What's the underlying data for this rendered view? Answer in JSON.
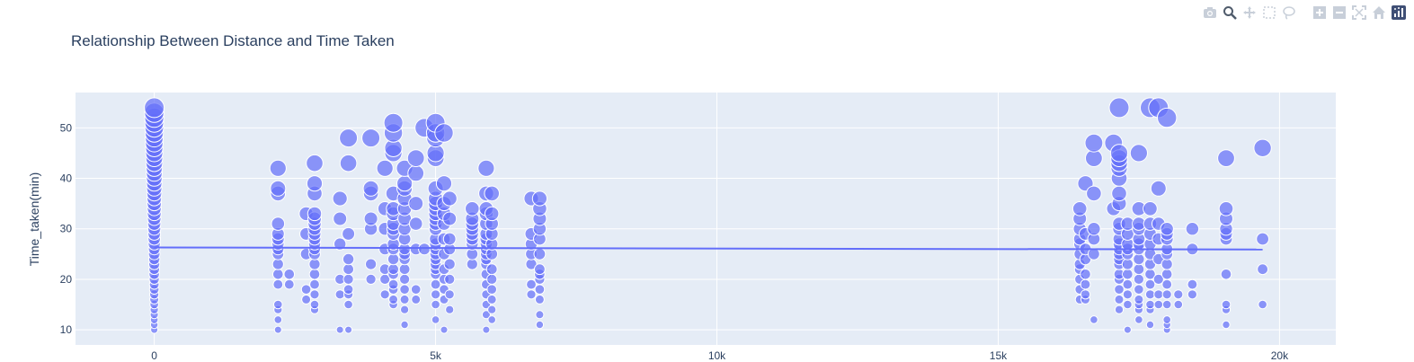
{
  "modebar": {
    "buttons": [
      "camera-icon",
      "zoom-icon",
      "pan-icon",
      "box-select-icon",
      "lasso-icon",
      "zoom-in-icon",
      "zoom-out-icon",
      "autoscale-icon",
      "home-icon",
      "plotly-logo-icon"
    ]
  },
  "chart_data": {
    "type": "scatter",
    "title": "Relationship Between Distance and Time Taken",
    "xlabel": "",
    "ylabel": "Time_taken(min)",
    "xlim": [
      -1400,
      21000
    ],
    "ylim": [
      7,
      57
    ],
    "xticks": [
      0,
      5000,
      10000,
      15000,
      20000
    ],
    "xtick_labels": [
      "0",
      "5k",
      "10k",
      "15k",
      "20k"
    ],
    "yticks": [
      10,
      20,
      30,
      40,
      50
    ],
    "ytick_labels": [
      "10",
      "20",
      "30",
      "40",
      "50"
    ],
    "grid": true,
    "legend": "none",
    "colors": {
      "marker": "#636efa",
      "trend": "#636efa",
      "plot_bg": "#e5ecf6",
      "grid": "#ffffff"
    },
    "bubble_size_encodes": "y",
    "trendline": {
      "x": [
        0,
        19700
      ],
      "y": [
        26.3,
        25.9
      ]
    },
    "points": [
      [
        0,
        10
      ],
      [
        0,
        11
      ],
      [
        0,
        12
      ],
      [
        0,
        13
      ],
      [
        0,
        14
      ],
      [
        0,
        15
      ],
      [
        0,
        16
      ],
      [
        0,
        17
      ],
      [
        0,
        18
      ],
      [
        0,
        19
      ],
      [
        0,
        20
      ],
      [
        0,
        21
      ],
      [
        0,
        22
      ],
      [
        0,
        23
      ],
      [
        0,
        24
      ],
      [
        0,
        25
      ],
      [
        0,
        26
      ],
      [
        0,
        27
      ],
      [
        0,
        28
      ],
      [
        0,
        29
      ],
      [
        0,
        30
      ],
      [
        0,
        31
      ],
      [
        0,
        32
      ],
      [
        0,
        33
      ],
      [
        0,
        34
      ],
      [
        0,
        35
      ],
      [
        0,
        36
      ],
      [
        0,
        37
      ],
      [
        0,
        38
      ],
      [
        0,
        39
      ],
      [
        0,
        40
      ],
      [
        0,
        41
      ],
      [
        0,
        42
      ],
      [
        0,
        43
      ],
      [
        0,
        44
      ],
      [
        0,
        45
      ],
      [
        0,
        46
      ],
      [
        0,
        47
      ],
      [
        0,
        48
      ],
      [
        0,
        49
      ],
      [
        0,
        50
      ],
      [
        0,
        51
      ],
      [
        0,
        52
      ],
      [
        0,
        53
      ],
      [
        0,
        54
      ],
      [
        2200,
        10
      ],
      [
        2200,
        12
      ],
      [
        2200,
        14
      ],
      [
        2200,
        15
      ],
      [
        2200,
        19
      ],
      [
        2200,
        21
      ],
      [
        2200,
        23
      ],
      [
        2200,
        25
      ],
      [
        2200,
        26
      ],
      [
        2200,
        27
      ],
      [
        2200,
        28
      ],
      [
        2200,
        29
      ],
      [
        2200,
        31
      ],
      [
        2200,
        37
      ],
      [
        2200,
        38
      ],
      [
        2200,
        42
      ],
      [
        2400,
        19
      ],
      [
        2400,
        21
      ],
      [
        2700,
        16
      ],
      [
        2700,
        18
      ],
      [
        2700,
        25
      ],
      [
        2700,
        29
      ],
      [
        2700,
        33
      ],
      [
        2850,
        14
      ],
      [
        2850,
        15
      ],
      [
        2850,
        17
      ],
      [
        2850,
        19
      ],
      [
        2850,
        21
      ],
      [
        2850,
        23
      ],
      [
        2850,
        25
      ],
      [
        2850,
        26
      ],
      [
        2850,
        27
      ],
      [
        2850,
        28
      ],
      [
        2850,
        29
      ],
      [
        2850,
        30
      ],
      [
        2850,
        31
      ],
      [
        2850,
        32
      ],
      [
        2850,
        33
      ],
      [
        2850,
        37
      ],
      [
        2850,
        39
      ],
      [
        2850,
        43
      ],
      [
        3300,
        10
      ],
      [
        3300,
        17
      ],
      [
        3300,
        20
      ],
      [
        3300,
        27
      ],
      [
        3300,
        32
      ],
      [
        3300,
        36
      ],
      [
        3450,
        10
      ],
      [
        3450,
        15
      ],
      [
        3450,
        17
      ],
      [
        3450,
        18
      ],
      [
        3450,
        20
      ],
      [
        3450,
        22
      ],
      [
        3450,
        24
      ],
      [
        3450,
        29
      ],
      [
        3450,
        43
      ],
      [
        3450,
        48
      ],
      [
        3850,
        20
      ],
      [
        3850,
        23
      ],
      [
        3850,
        30
      ],
      [
        3850,
        32
      ],
      [
        3850,
        37
      ],
      [
        3850,
        38
      ],
      [
        3850,
        48
      ],
      [
        4100,
        17
      ],
      [
        4100,
        20
      ],
      [
        4100,
        22
      ],
      [
        4100,
        26
      ],
      [
        4100,
        30
      ],
      [
        4100,
        34
      ],
      [
        4100,
        42
      ],
      [
        4250,
        15
      ],
      [
        4250,
        16
      ],
      [
        4250,
        18
      ],
      [
        4250,
        19
      ],
      [
        4250,
        21
      ],
      [
        4250,
        22
      ],
      [
        4250,
        24
      ],
      [
        4250,
        26
      ],
      [
        4250,
        27
      ],
      [
        4250,
        29
      ],
      [
        4250,
        30
      ],
      [
        4250,
        31
      ],
      [
        4250,
        33
      ],
      [
        4250,
        34
      ],
      [
        4250,
        37
      ],
      [
        4250,
        45
      ],
      [
        4250,
        46
      ],
      [
        4250,
        49
      ],
      [
        4250,
        51
      ],
      [
        4450,
        11
      ],
      [
        4450,
        14
      ],
      [
        4450,
        16
      ],
      [
        4450,
        18
      ],
      [
        4450,
        20
      ],
      [
        4450,
        22
      ],
      [
        4450,
        24
      ],
      [
        4450,
        25
      ],
      [
        4450,
        26
      ],
      [
        4450,
        28
      ],
      [
        4450,
        30
      ],
      [
        4450,
        32
      ],
      [
        4450,
        34
      ],
      [
        4450,
        36
      ],
      [
        4450,
        38
      ],
      [
        4450,
        39
      ],
      [
        4450,
        42
      ],
      [
        4650,
        16
      ],
      [
        4650,
        18
      ],
      [
        4650,
        26
      ],
      [
        4650,
        31
      ],
      [
        4650,
        35
      ],
      [
        4650,
        41
      ],
      [
        4650,
        44
      ],
      [
        4800,
        26
      ],
      [
        4800,
        50
      ],
      [
        5000,
        12
      ],
      [
        5000,
        15
      ],
      [
        5000,
        17
      ],
      [
        5000,
        19
      ],
      [
        5000,
        21
      ],
      [
        5000,
        22
      ],
      [
        5000,
        23
      ],
      [
        5000,
        24
      ],
      [
        5000,
        25
      ],
      [
        5000,
        26
      ],
      [
        5000,
        27
      ],
      [
        5000,
        28
      ],
      [
        5000,
        30
      ],
      [
        5000,
        31
      ],
      [
        5000,
        32
      ],
      [
        5000,
        33
      ],
      [
        5000,
        34
      ],
      [
        5000,
        35
      ],
      [
        5000,
        36
      ],
      [
        5000,
        38
      ],
      [
        5000,
        44
      ],
      [
        5000,
        45
      ],
      [
        5000,
        48
      ],
      [
        5000,
        49
      ],
      [
        5000,
        51
      ],
      [
        5150,
        10
      ],
      [
        5150,
        16
      ],
      [
        5150,
        18
      ],
      [
        5150,
        20
      ],
      [
        5150,
        22
      ],
      [
        5150,
        25
      ],
      [
        5150,
        28
      ],
      [
        5150,
        31
      ],
      [
        5150,
        33
      ],
      [
        5150,
        35
      ],
      [
        5150,
        39
      ],
      [
        5150,
        49
      ],
      [
        5250,
        14
      ],
      [
        5250,
        17
      ],
      [
        5250,
        20
      ],
      [
        5250,
        23
      ],
      [
        5250,
        26
      ],
      [
        5250,
        28
      ],
      [
        5250,
        32
      ],
      [
        5250,
        36
      ],
      [
        5650,
        23
      ],
      [
        5650,
        25
      ],
      [
        5650,
        27
      ],
      [
        5650,
        28
      ],
      [
        5650,
        29
      ],
      [
        5650,
        30
      ],
      [
        5650,
        31
      ],
      [
        5650,
        32
      ],
      [
        5650,
        34
      ],
      [
        5900,
        10
      ],
      [
        5900,
        13
      ],
      [
        5900,
        15
      ],
      [
        5900,
        17
      ],
      [
        5900,
        19
      ],
      [
        5900,
        21
      ],
      [
        5900,
        23
      ],
      [
        5900,
        24
      ],
      [
        5900,
        25
      ],
      [
        5900,
        26
      ],
      [
        5900,
        27
      ],
      [
        5900,
        28
      ],
      [
        5900,
        29
      ],
      [
        5900,
        31
      ],
      [
        5900,
        33
      ],
      [
        5900,
        34
      ],
      [
        5900,
        37
      ],
      [
        5900,
        42
      ],
      [
        6000,
        12
      ],
      [
        6000,
        14
      ],
      [
        6000,
        16
      ],
      [
        6000,
        18
      ],
      [
        6000,
        20
      ],
      [
        6000,
        22
      ],
      [
        6000,
        25
      ],
      [
        6000,
        27
      ],
      [
        6000,
        29
      ],
      [
        6000,
        31
      ],
      [
        6000,
        33
      ],
      [
        6000,
        37
      ],
      [
        6700,
        17
      ],
      [
        6700,
        19
      ],
      [
        6700,
        23
      ],
      [
        6700,
        25
      ],
      [
        6700,
        27
      ],
      [
        6700,
        29
      ],
      [
        6700,
        36
      ],
      [
        6850,
        11
      ],
      [
        6850,
        13
      ],
      [
        6850,
        16
      ],
      [
        6850,
        18
      ],
      [
        6850,
        20
      ],
      [
        6850,
        21
      ],
      [
        6850,
        22
      ],
      [
        6850,
        25
      ],
      [
        6850,
        28
      ],
      [
        6850,
        30
      ],
      [
        6850,
        32
      ],
      [
        6850,
        34
      ],
      [
        6850,
        36
      ],
      [
        16450,
        16
      ],
      [
        16450,
        18
      ],
      [
        16450,
        20
      ],
      [
        16450,
        22
      ],
      [
        16450,
        23
      ],
      [
        16450,
        25
      ],
      [
        16450,
        27
      ],
      [
        16450,
        28
      ],
      [
        16450,
        30
      ],
      [
        16450,
        32
      ],
      [
        16450,
        34
      ],
      [
        16550,
        16
      ],
      [
        16550,
        17
      ],
      [
        16550,
        19
      ],
      [
        16550,
        21
      ],
      [
        16550,
        24
      ],
      [
        16550,
        26
      ],
      [
        16550,
        29
      ],
      [
        16550,
        39
      ],
      [
        16700,
        12
      ],
      [
        16700,
        25
      ],
      [
        16700,
        28
      ],
      [
        16700,
        30
      ],
      [
        16700,
        37
      ],
      [
        16700,
        44
      ],
      [
        16700,
        47
      ],
      [
        17050,
        34
      ],
      [
        17050,
        47
      ],
      [
        17150,
        14
      ],
      [
        17150,
        16
      ],
      [
        17150,
        18
      ],
      [
        17150,
        20
      ],
      [
        17150,
        21
      ],
      [
        17150,
        23
      ],
      [
        17150,
        24
      ],
      [
        17150,
        25
      ],
      [
        17150,
        26
      ],
      [
        17150,
        27
      ],
      [
        17150,
        28
      ],
      [
        17150,
        30
      ],
      [
        17150,
        31
      ],
      [
        17150,
        35
      ],
      [
        17150,
        37
      ],
      [
        17150,
        40
      ],
      [
        17150,
        42
      ],
      [
        17150,
        43
      ],
      [
        17150,
        44
      ],
      [
        17150,
        45
      ],
      [
        17150,
        54
      ],
      [
        17300,
        10
      ],
      [
        17300,
        15
      ],
      [
        17300,
        17
      ],
      [
        17300,
        19
      ],
      [
        17300,
        21
      ],
      [
        17300,
        23
      ],
      [
        17300,
        25
      ],
      [
        17300,
        26
      ],
      [
        17300,
        27
      ],
      [
        17300,
        29
      ],
      [
        17300,
        31
      ],
      [
        17500,
        12
      ],
      [
        17500,
        14
      ],
      [
        17500,
        15
      ],
      [
        17500,
        16
      ],
      [
        17500,
        18
      ],
      [
        17500,
        20
      ],
      [
        17500,
        22
      ],
      [
        17500,
        24
      ],
      [
        17500,
        26
      ],
      [
        17500,
        27
      ],
      [
        17500,
        28
      ],
      [
        17500,
        30
      ],
      [
        17500,
        31
      ],
      [
        17500,
        34
      ],
      [
        17500,
        45
      ],
      [
        17700,
        11
      ],
      [
        17700,
        14
      ],
      [
        17700,
        15
      ],
      [
        17700,
        17
      ],
      [
        17700,
        19
      ],
      [
        17700,
        21
      ],
      [
        17700,
        23
      ],
      [
        17700,
        25
      ],
      [
        17700,
        27
      ],
      [
        17700,
        29
      ],
      [
        17700,
        31
      ],
      [
        17700,
        34
      ],
      [
        17700,
        54
      ],
      [
        17850,
        15
      ],
      [
        17850,
        17
      ],
      [
        17850,
        20
      ],
      [
        17850,
        24
      ],
      [
        17850,
        28
      ],
      [
        17850,
        31
      ],
      [
        17850,
        38
      ],
      [
        17850,
        54
      ],
      [
        18000,
        10
      ],
      [
        18000,
        11
      ],
      [
        18000,
        12
      ],
      [
        18000,
        15
      ],
      [
        18000,
        17
      ],
      [
        18000,
        19
      ],
      [
        18000,
        21
      ],
      [
        18000,
        23
      ],
      [
        18000,
        25
      ],
      [
        18000,
        26
      ],
      [
        18000,
        28
      ],
      [
        18000,
        29
      ],
      [
        18000,
        30
      ],
      [
        18000,
        52
      ],
      [
        18200,
        15
      ],
      [
        18200,
        17
      ],
      [
        18450,
        17
      ],
      [
        18450,
        19
      ],
      [
        18450,
        26
      ],
      [
        18450,
        30
      ],
      [
        19050,
        11
      ],
      [
        19050,
        14
      ],
      [
        19050,
        15
      ],
      [
        19050,
        21
      ],
      [
        19050,
        28
      ],
      [
        19050,
        29
      ],
      [
        19050,
        30
      ],
      [
        19050,
        32
      ],
      [
        19050,
        34
      ],
      [
        19050,
        44
      ],
      [
        19700,
        15
      ],
      [
        19700,
        22
      ],
      [
        19700,
        28
      ],
      [
        19700,
        46
      ]
    ]
  }
}
